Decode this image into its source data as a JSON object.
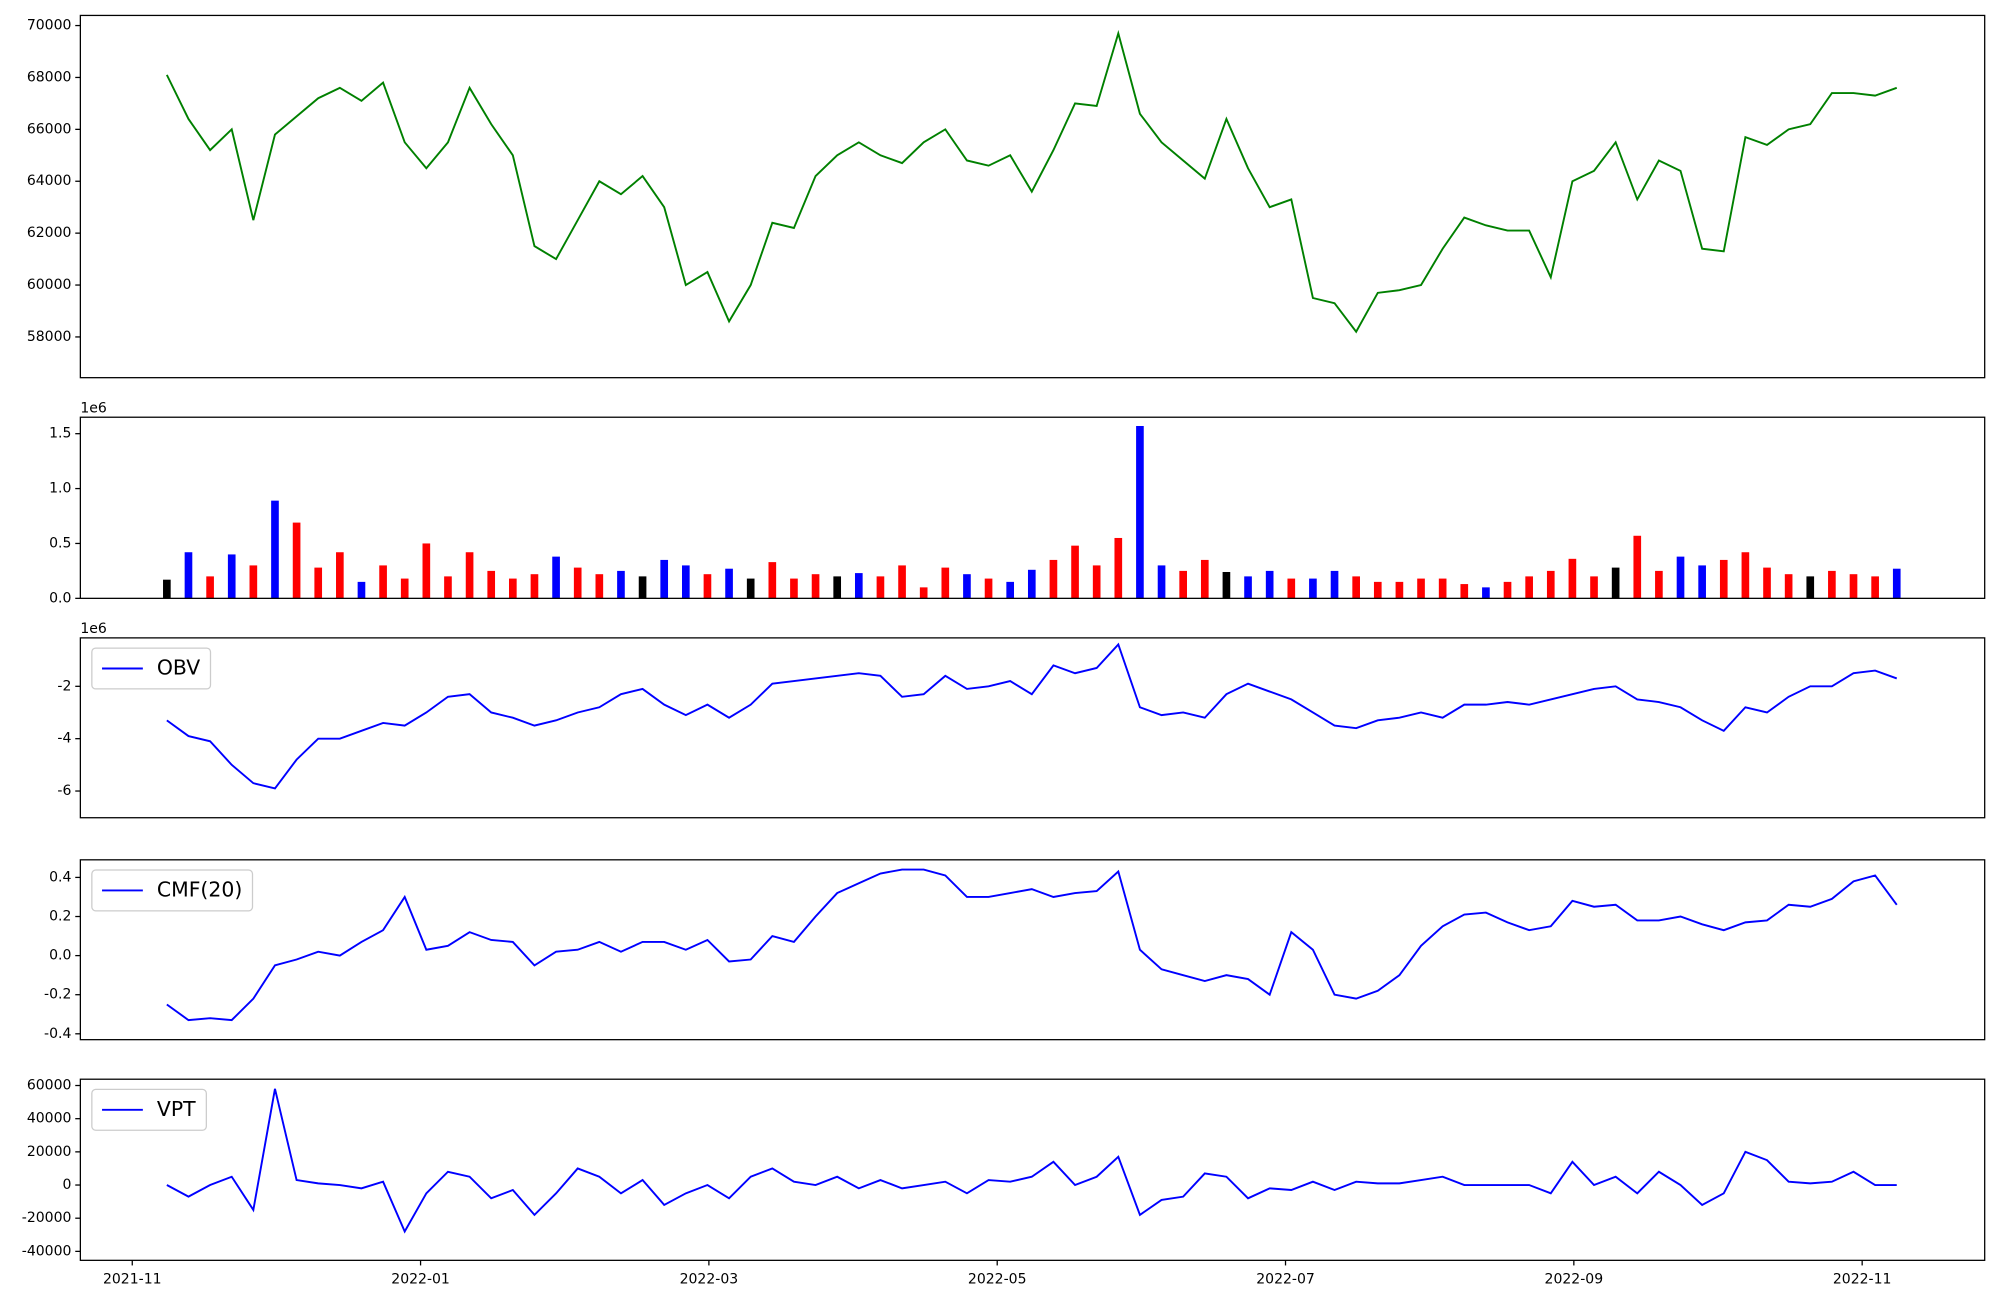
{
  "chart_data": [
    {
      "type": "line",
      "x": [
        0.24,
        0.39,
        0.54,
        0.69,
        0.84,
        0.99,
        1.14,
        1.29,
        1.44,
        1.59,
        1.74,
        1.89,
        2.04,
        2.19,
        2.34,
        2.49,
        2.64,
        2.79,
        2.94,
        3.09,
        3.24,
        3.39,
        3.54,
        3.69,
        3.84,
        3.99,
        4.14,
        4.29,
        4.44,
        4.59,
        4.74,
        4.89,
        5.04,
        5.19,
        5.34,
        5.49,
        5.64,
        5.79,
        5.94,
        6.09,
        6.24,
        6.39,
        6.54,
        6.69,
        6.84,
        6.99,
        7.14,
        7.29,
        7.44,
        7.59,
        7.74,
        7.89,
        8.04,
        8.19,
        8.34,
        8.49,
        8.64,
        8.79,
        8.94,
        9.09,
        9.24,
        9.39,
        9.54,
        9.69,
        9.84,
        9.99,
        10.14,
        10.29,
        10.44,
        10.59,
        10.74,
        10.89,
        11.04,
        11.19,
        11.34,
        11.49,
        11.64,
        11.79,
        11.94,
        12.09,
        12.24
      ],
      "xlim": [
        -0.36,
        12.85
      ],
      "ylim": [
        56430,
        70390
      ],
      "yticks": [
        58000,
        60000,
        62000,
        64000,
        66000,
        68000,
        70000
      ],
      "series": [
        {
          "color": "green",
          "values": [
            68100,
            66400,
            65200,
            66000,
            62500,
            65800,
            66500,
            67200,
            67600,
            67100,
            67800,
            65500,
            64500,
            65500,
            67600,
            66200,
            65000,
            61500,
            61000,
            62500,
            64000,
            63500,
            64200,
            63000,
            60000,
            60500,
            58600,
            60000,
            62400,
            62200,
            64200,
            65000,
            65500,
            65000,
            64700,
            65500,
            66000,
            64800,
            64600,
            65000,
            63600,
            65200,
            67000,
            66900,
            69700,
            66600,
            65500,
            64800,
            64100,
            66400,
            64500,
            63000,
            63300,
            59500,
            59300,
            58200,
            59700,
            59800,
            60000,
            61400,
            62600,
            62300,
            62100,
            62100,
            60300,
            64000,
            64400,
            65500,
            63300,
            64800,
            64400,
            61400,
            61300,
            65700,
            65400,
            66000,
            66200,
            67400,
            67400,
            67300,
            67600
          ]
        }
      ]
    },
    {
      "type": "bar",
      "x": [
        0.24,
        0.39,
        0.54,
        0.69,
        0.84,
        0.99,
        1.14,
        1.29,
        1.44,
        1.59,
        1.74,
        1.89,
        2.04,
        2.19,
        2.34,
        2.49,
        2.64,
        2.79,
        2.94,
        3.09,
        3.24,
        3.39,
        3.54,
        3.69,
        3.84,
        3.99,
        4.14,
        4.29,
        4.44,
        4.59,
        4.74,
        4.89,
        5.04,
        5.19,
        5.34,
        5.49,
        5.64,
        5.79,
        5.94,
        6.09,
        6.24,
        6.39,
        6.54,
        6.69,
        6.84,
        6.99,
        7.14,
        7.29,
        7.44,
        7.59,
        7.74,
        7.89,
        8.04,
        8.19,
        8.34,
        8.49,
        8.64,
        8.79,
        8.94,
        9.09,
        9.24,
        9.39,
        9.54,
        9.69,
        9.84,
        9.99,
        10.14,
        10.29,
        10.44,
        10.59,
        10.74,
        10.89,
        11.04,
        11.19,
        11.34,
        11.49,
        11.64,
        11.79,
        11.94,
        12.09,
        12.24
      ],
      "xlim": [
        -0.36,
        12.85
      ],
      "ylim": [
        0,
        1.65
      ],
      "yticks": [
        {
          "value": 0,
          "label": "0.0"
        },
        0.5,
        {
          "value": 1,
          "label": "1.0"
        },
        1.5
      ],
      "y_offset_label": "1e6",
      "series": [
        {
          "values": [
            0.17,
            0.42,
            0.2,
            0.4,
            0.3,
            0.89,
            0.69,
            0.28,
            0.42,
            0.15,
            0.3,
            0.18,
            0.5,
            0.2,
            0.42,
            0.25,
            0.18,
            0.22,
            0.38,
            0.28,
            0.22,
            0.25,
            0.2,
            0.35,
            0.3,
            0.22,
            0.27,
            0.18,
            0.33,
            0.18,
            0.22,
            0.2,
            0.23,
            0.2,
            0.3,
            0.1,
            0.28,
            0.22,
            0.18,
            0.15,
            0.26,
            0.35,
            0.48,
            0.3,
            0.55,
            1.57,
            0.3,
            0.25,
            0.35,
            0.24,
            0.2,
            0.25,
            0.18,
            0.18,
            0.25,
            0.2,
            0.15,
            0.15,
            0.18,
            0.18,
            0.13,
            0.1,
            0.15,
            0.2,
            0.25,
            0.36,
            0.2,
            0.28,
            0.57,
            0.25,
            0.38,
            0.3,
            0.35,
            0.42,
            0.28,
            0.22,
            0.2,
            0.25,
            0.22,
            0.2,
            0.27
          ],
          "colors": [
            "black",
            "blue",
            "red",
            "blue",
            "red",
            "blue",
            "red",
            "red",
            "red",
            "blue",
            "red",
            "red",
            "red",
            "red",
            "red",
            "red",
            "red",
            "red",
            "blue",
            "red",
            "red",
            "blue",
            "black",
            "blue",
            "blue",
            "red",
            "blue",
            "black",
            "red",
            "red",
            "red",
            "black",
            "blue",
            "red",
            "red",
            "red",
            "red",
            "blue",
            "red",
            "blue",
            "blue",
            "red",
            "red",
            "red",
            "red",
            "blue",
            "blue",
            "red",
            "red",
            "black",
            "blue",
            "blue",
            "red",
            "blue",
            "blue",
            "red",
            "red",
            "red",
            "red",
            "red",
            "red",
            "blue",
            "red",
            "red",
            "red",
            "red",
            "red",
            "black",
            "red",
            "red",
            "blue",
            "blue",
            "red",
            "red",
            "red",
            "red",
            "black",
            "red",
            "red",
            "red",
            "blue"
          ]
        }
      ]
    },
    {
      "type": "line",
      "x": [
        0.24,
        0.39,
        0.54,
        0.69,
        0.84,
        0.99,
        1.14,
        1.29,
        1.44,
        1.59,
        1.74,
        1.89,
        2.04,
        2.19,
        2.34,
        2.49,
        2.64,
        2.79,
        2.94,
        3.09,
        3.24,
        3.39,
        3.54,
        3.69,
        3.84,
        3.99,
        4.14,
        4.29,
        4.44,
        4.59,
        4.74,
        4.89,
        5.04,
        5.19,
        5.34,
        5.49,
        5.64,
        5.79,
        5.94,
        6.09,
        6.24,
        6.39,
        6.54,
        6.69,
        6.84,
        6.99,
        7.14,
        7.29,
        7.44,
        7.59,
        7.74,
        7.89,
        8.04,
        8.19,
        8.34,
        8.49,
        8.64,
        8.79,
        8.94,
        9.09,
        9.24,
        9.39,
        9.54,
        9.69,
        9.84,
        9.99,
        10.14,
        10.29,
        10.44,
        10.59,
        10.74,
        10.89,
        11.04,
        11.19,
        11.34,
        11.49,
        11.64,
        11.79,
        11.94,
        12.09,
        12.24
      ],
      "xlim": [
        -0.36,
        12.85
      ],
      "ylim": [
        -7.02,
        -0.15
      ],
      "yticks": [
        -6,
        -4,
        -2
      ],
      "y_offset_label": "1e6",
      "legend": "upper left",
      "series": [
        {
          "name": "OBV",
          "color": "blue",
          "values": [
            -3.3,
            -3.9,
            -4.1,
            -5.0,
            -5.7,
            -5.9,
            -4.8,
            -4.0,
            -4.0,
            -3.7,
            -3.4,
            -3.5,
            -3.0,
            -2.4,
            -2.3,
            -3.0,
            -3.2,
            -3.5,
            -3.3,
            -3.0,
            -2.8,
            -2.3,
            -2.1,
            -2.7,
            -3.1,
            -2.7,
            -3.2,
            -2.7,
            -1.9,
            -1.8,
            -1.7,
            -1.6,
            -1.5,
            -1.6,
            -2.4,
            -2.3,
            -1.6,
            -2.1,
            -2.0,
            -1.8,
            -2.3,
            -1.2,
            -1.5,
            -1.3,
            -0.4,
            -2.8,
            -3.1,
            -3.0,
            -3.2,
            -2.3,
            -1.9,
            -2.2,
            -2.5,
            -3.0,
            -3.5,
            -3.6,
            -3.3,
            -3.2,
            -3.0,
            -3.2,
            -2.7,
            -2.7,
            -2.6,
            -2.7,
            -2.5,
            -2.3,
            -2.1,
            -2.0,
            -2.5,
            -2.6,
            -2.8,
            -3.3,
            -3.7,
            -2.8,
            -3.0,
            -2.4,
            -2.0,
            -2.0,
            -1.5,
            -1.4,
            -1.7
          ]
        }
      ]
    },
    {
      "type": "line",
      "x": [
        0.24,
        0.39,
        0.54,
        0.69,
        0.84,
        0.99,
        1.14,
        1.29,
        1.44,
        1.59,
        1.74,
        1.89,
        2.04,
        2.19,
        2.34,
        2.49,
        2.64,
        2.79,
        2.94,
        3.09,
        3.24,
        3.39,
        3.54,
        3.69,
        3.84,
        3.99,
        4.14,
        4.29,
        4.44,
        4.59,
        4.74,
        4.89,
        5.04,
        5.19,
        5.34,
        5.49,
        5.64,
        5.79,
        5.94,
        6.09,
        6.24,
        6.39,
        6.54,
        6.69,
        6.84,
        6.99,
        7.14,
        7.29,
        7.44,
        7.59,
        7.74,
        7.89,
        8.04,
        8.19,
        8.34,
        8.49,
        8.64,
        8.79,
        8.94,
        9.09,
        9.24,
        9.39,
        9.54,
        9.69,
        9.84,
        9.99,
        10.14,
        10.29,
        10.44,
        10.59,
        10.74,
        10.89,
        11.04,
        11.19,
        11.34,
        11.49,
        11.64,
        11.79,
        11.94,
        12.09,
        12.24
      ],
      "xlim": [
        -0.36,
        12.85
      ],
      "ylim": [
        -0.43,
        0.49
      ],
      "yticks": [
        -0.4,
        -0.2,
        {
          "value": 0,
          "label": "0.0"
        },
        0.2,
        0.4
      ],
      "legend": "upper left",
      "series": [
        {
          "name": "CMF(20)",
          "color": "blue",
          "values": [
            -0.25,
            -0.33,
            -0.32,
            -0.33,
            -0.22,
            -0.05,
            -0.02,
            0.02,
            0.0,
            0.07,
            0.13,
            0.3,
            0.03,
            0.05,
            0.12,
            0.08,
            0.07,
            -0.05,
            0.02,
            0.03,
            0.07,
            0.02,
            0.07,
            0.07,
            0.03,
            0.08,
            -0.03,
            -0.02,
            0.1,
            0.07,
            0.2,
            0.32,
            0.37,
            0.42,
            0.44,
            0.44,
            0.41,
            0.3,
            0.3,
            0.32,
            0.34,
            0.3,
            0.32,
            0.33,
            0.43,
            0.03,
            -0.07,
            -0.1,
            -0.13,
            -0.1,
            -0.12,
            -0.2,
            0.12,
            0.03,
            -0.2,
            -0.22,
            -0.18,
            -0.1,
            0.05,
            0.15,
            0.21,
            0.22,
            0.17,
            0.13,
            0.15,
            0.28,
            0.25,
            0.26,
            0.18,
            0.18,
            0.2,
            0.16,
            0.13,
            0.17,
            0.18,
            0.26,
            0.25,
            0.29,
            0.38,
            0.41,
            0.26
          ]
        }
      ]
    },
    {
      "type": "line",
      "x": [
        0.24,
        0.39,
        0.54,
        0.69,
        0.84,
        0.99,
        1.14,
        1.29,
        1.44,
        1.59,
        1.74,
        1.89,
        2.04,
        2.19,
        2.34,
        2.49,
        2.64,
        2.79,
        2.94,
        3.09,
        3.24,
        3.39,
        3.54,
        3.69,
        3.84,
        3.99,
        4.14,
        4.29,
        4.44,
        4.59,
        4.74,
        4.89,
        5.04,
        5.19,
        5.34,
        5.49,
        5.64,
        5.79,
        5.94,
        6.09,
        6.24,
        6.39,
        6.54,
        6.69,
        6.84,
        6.99,
        7.14,
        7.29,
        7.44,
        7.59,
        7.74,
        7.89,
        8.04,
        8.19,
        8.34,
        8.49,
        8.64,
        8.79,
        8.94,
        9.09,
        9.24,
        9.39,
        9.54,
        9.69,
        9.84,
        9.99,
        10.14,
        10.29,
        10.44,
        10.59,
        10.74,
        10.89,
        11.04,
        11.19,
        11.34,
        11.49,
        11.64,
        11.79,
        11.94,
        12.09,
        12.24
      ],
      "xlim": [
        -0.36,
        12.85
      ],
      "ylim": [
        -45400,
        63800
      ],
      "yticks": [
        -40000,
        -20000,
        0,
        20000,
        40000,
        60000
      ],
      "xticks": [
        {
          "value": 0,
          "label": "2021-11"
        },
        {
          "value": 2,
          "label": "2022-01"
        },
        {
          "value": 4,
          "label": "2022-03"
        },
        {
          "value": 6,
          "label": "2022-05"
        },
        {
          "value": 8,
          "label": "2022-07"
        },
        {
          "value": 10,
          "label": "2022-09"
        },
        {
          "value": 12,
          "label": "2022-11"
        }
      ],
      "legend": "upper left",
      "series": [
        {
          "name": "VPT",
          "color": "blue",
          "values": [
            0,
            -7000,
            0,
            5000,
            -15000,
            58000,
            3000,
            1000,
            0,
            -2000,
            2000,
            -28000,
            -5000,
            8000,
            5000,
            -8000,
            -3000,
            -18000,
            -5000,
            10000,
            5000,
            -5000,
            3000,
            -12000,
            -5000,
            0,
            -8000,
            5000,
            10000,
            2000,
            0,
            5000,
            -2000,
            3000,
            -2000,
            0,
            2000,
            -5000,
            3000,
            2000,
            5000,
            14000,
            0,
            5000,
            17000,
            -18000,
            -9000,
            -7000,
            7000,
            5000,
            -8000,
            -2000,
            -3000,
            2000,
            -3000,
            2000,
            1000,
            1000,
            3000,
            5000,
            0,
            0,
            0,
            0,
            -5000,
            14000,
            0,
            5000,
            -5000,
            8000,
            0,
            -12000,
            -5000,
            20000,
            15000,
            2000,
            1000,
            2000,
            8000,
            0,
            0
          ]
        }
      ]
    }
  ]
}
